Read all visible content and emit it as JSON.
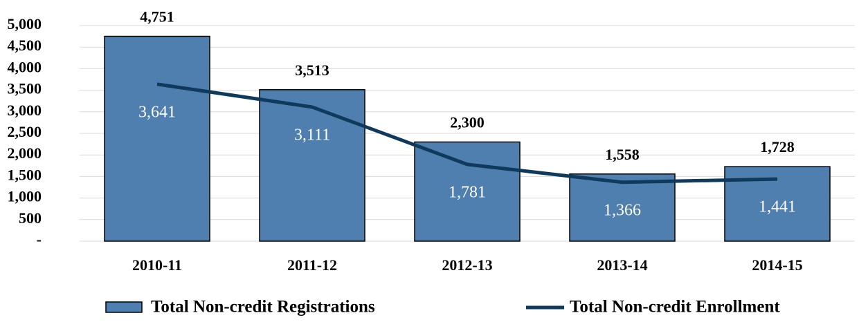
{
  "chart_data": {
    "type": "bar",
    "categories": [
      "2010-11",
      "2011-12",
      "2012-13",
      "2013-14",
      "2014-15"
    ],
    "series": [
      {
        "name": "Total Non-credit Registrations",
        "type": "bar",
        "color": "#4f7fae",
        "values": [
          4751,
          3513,
          2300,
          1558,
          1728
        ],
        "value_labels": [
          "4,751",
          "3,513",
          "2,300",
          "1,558",
          "1,728"
        ]
      },
      {
        "name": "Total Non-credit Enrollment",
        "type": "line",
        "color": "#0f3a5c",
        "values": [
          3641,
          3111,
          1781,
          1366,
          1441
        ],
        "value_labels": [
          "3,641",
          "3,111",
          "1,781",
          "1,366",
          "1,441"
        ]
      }
    ],
    "ylim": [
      0,
      5000
    ],
    "yticks": [
      {
        "value": 0,
        "label": "-"
      },
      500,
      {
        "value": 1000,
        "label": "1,000"
      },
      {
        "value": 1500,
        "label": "1,500"
      },
      {
        "value": 2000,
        "label": "2,000"
      },
      {
        "value": 2500,
        "label": "2,500"
      },
      {
        "value": 3000,
        "label": "3,000"
      },
      {
        "value": 3500,
        "label": "3,500"
      },
      {
        "value": 4000,
        "label": "4,000"
      },
      {
        "value": 4500,
        "label": "4,500"
      },
      {
        "value": 5000,
        "label": "5,000"
      }
    ],
    "grid": true,
    "legend": "bottom"
  }
}
